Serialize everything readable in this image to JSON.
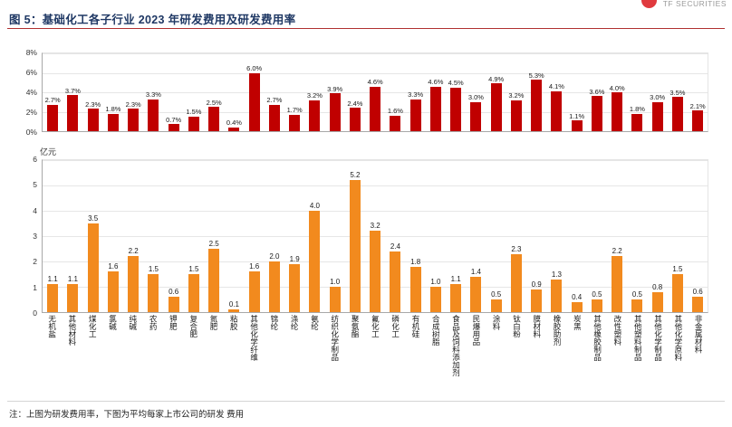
{
  "header": {
    "figure_label": "图 5：基础化工各子行业 2023 年研发费用及研发费用率"
  },
  "logo": {
    "text": "TF SECURITIES"
  },
  "footnote": "注：上图为研发费用率，下图为平均每家上市公司的研发 费用",
  "colors": {
    "title_navy": "#1F3864",
    "rule_red": "#B03030",
    "logo_red": "#E03A3E",
    "bar_red": "#C00000",
    "bar_orange": "#F28A1E"
  },
  "categories": [
    "无机盐",
    "其他材料",
    "煤化工",
    "氯碱",
    "纯碱",
    "农药",
    "钾肥",
    "复合肥",
    "氮肥",
    "粘胶",
    "其他化学纤维",
    "锦纶",
    "涤纶",
    "氨纶",
    "纺织化学制品",
    "聚氨酯",
    "氟化工",
    "磷化工",
    "有机硅",
    "合成树脂",
    "食品及饲料添加剂",
    "民爆用品",
    "涂料",
    "钛白粉",
    "膜材料",
    "橡胶助剂",
    "炭黑",
    "其他橡胶制品",
    "改性塑料",
    "其他塑料制品",
    "其他化学制品",
    "其他化学原料",
    "非金属材料"
  ],
  "chart_data": [
    {
      "type": "bar",
      "series_name": "研发费用率",
      "value_suffix": "%",
      "ylim": [
        0,
        8
      ],
      "ytick_labels": [
        "8%",
        "6%",
        "4%",
        "2%",
        "0%"
      ],
      "bar_color": "#C00000",
      "grid": true,
      "legend": "none",
      "values": [
        2.7,
        3.7,
        2.3,
        1.8,
        2.3,
        3.3,
        0.7,
        1.5,
        2.5,
        0.4,
        6.0,
        2.7,
        1.7,
        3.2,
        3.9,
        2.4,
        4.6,
        1.6,
        3.3,
        4.6,
        4.5,
        3.0,
        4.9,
        3.2,
        5.3,
        4.1,
        1.1,
        3.6,
        4.0,
        1.8,
        3.0,
        3.5,
        2.1
      ]
    },
    {
      "type": "bar",
      "series_name": "研发费用",
      "ylabel": "亿元",
      "value_suffix": "",
      "ylim": [
        0,
        6
      ],
      "ytick_labels": [
        "6",
        "5",
        "4",
        "3",
        "2",
        "1",
        "0"
      ],
      "bar_color": "#F28A1E",
      "grid": true,
      "legend": "none",
      "values": [
        1.1,
        1.1,
        3.5,
        1.6,
        2.2,
        1.5,
        0.6,
        1.5,
        2.5,
        0.1,
        1.6,
        2.0,
        1.9,
        4.0,
        1.0,
        5.2,
        3.2,
        2.4,
        1.8,
        1.0,
        1.1,
        1.4,
        0.5,
        2.3,
        0.9,
        1.3,
        0.4,
        0.5,
        2.2,
        0.5,
        0.8,
        1.5,
        0.6
      ]
    }
  ]
}
